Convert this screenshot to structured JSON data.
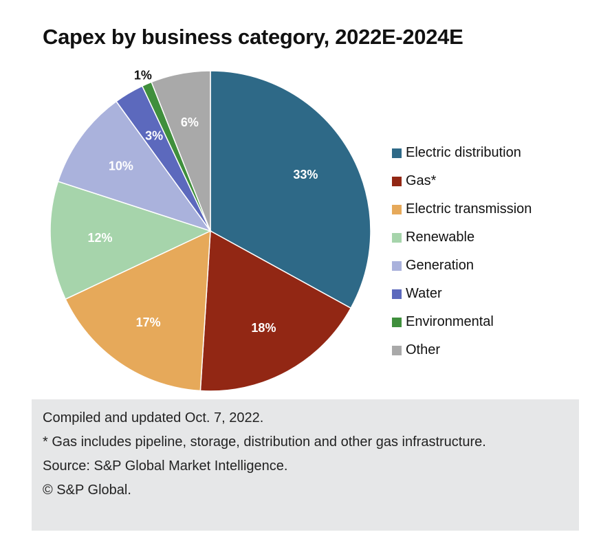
{
  "title": "Capex by business category, 2022E-2024E",
  "chart_data": {
    "type": "pie",
    "title": "Capex by business category, 2022E-2024E",
    "legend_placement": "right",
    "slices": [
      {
        "name": "Electric distribution",
        "value": 33,
        "label": "33%",
        "color": "#2e6987"
      },
      {
        "name": "Gas*",
        "value": 18,
        "label": "18%",
        "color": "#922714"
      },
      {
        "name": "Electric transmission",
        "value": 17,
        "label": "17%",
        "color": "#e6a95a"
      },
      {
        "name": "Renewable",
        "value": 12,
        "label": "12%",
        "color": "#a6d4ab"
      },
      {
        "name": "Generation",
        "value": 10,
        "label": "10%",
        "color": "#aab2dc"
      },
      {
        "name": "Water",
        "value": 3,
        "label": "3%",
        "color": "#5c69bd"
      },
      {
        "name": "Environmental",
        "value": 1,
        "label": "1%",
        "color": "#3f8f3c"
      },
      {
        "name": "Other",
        "value": 6,
        "label": "6%",
        "color": "#a9a9a9"
      }
    ]
  },
  "notes": {
    "compiled": "Compiled and updated Oct. 7, 2022.",
    "gas_note": "* Gas includes pipeline, storage, distribution and other gas infrastructure.",
    "source": "Source: S&P Global Market Intelligence.",
    "copyright": "© S&P Global."
  }
}
